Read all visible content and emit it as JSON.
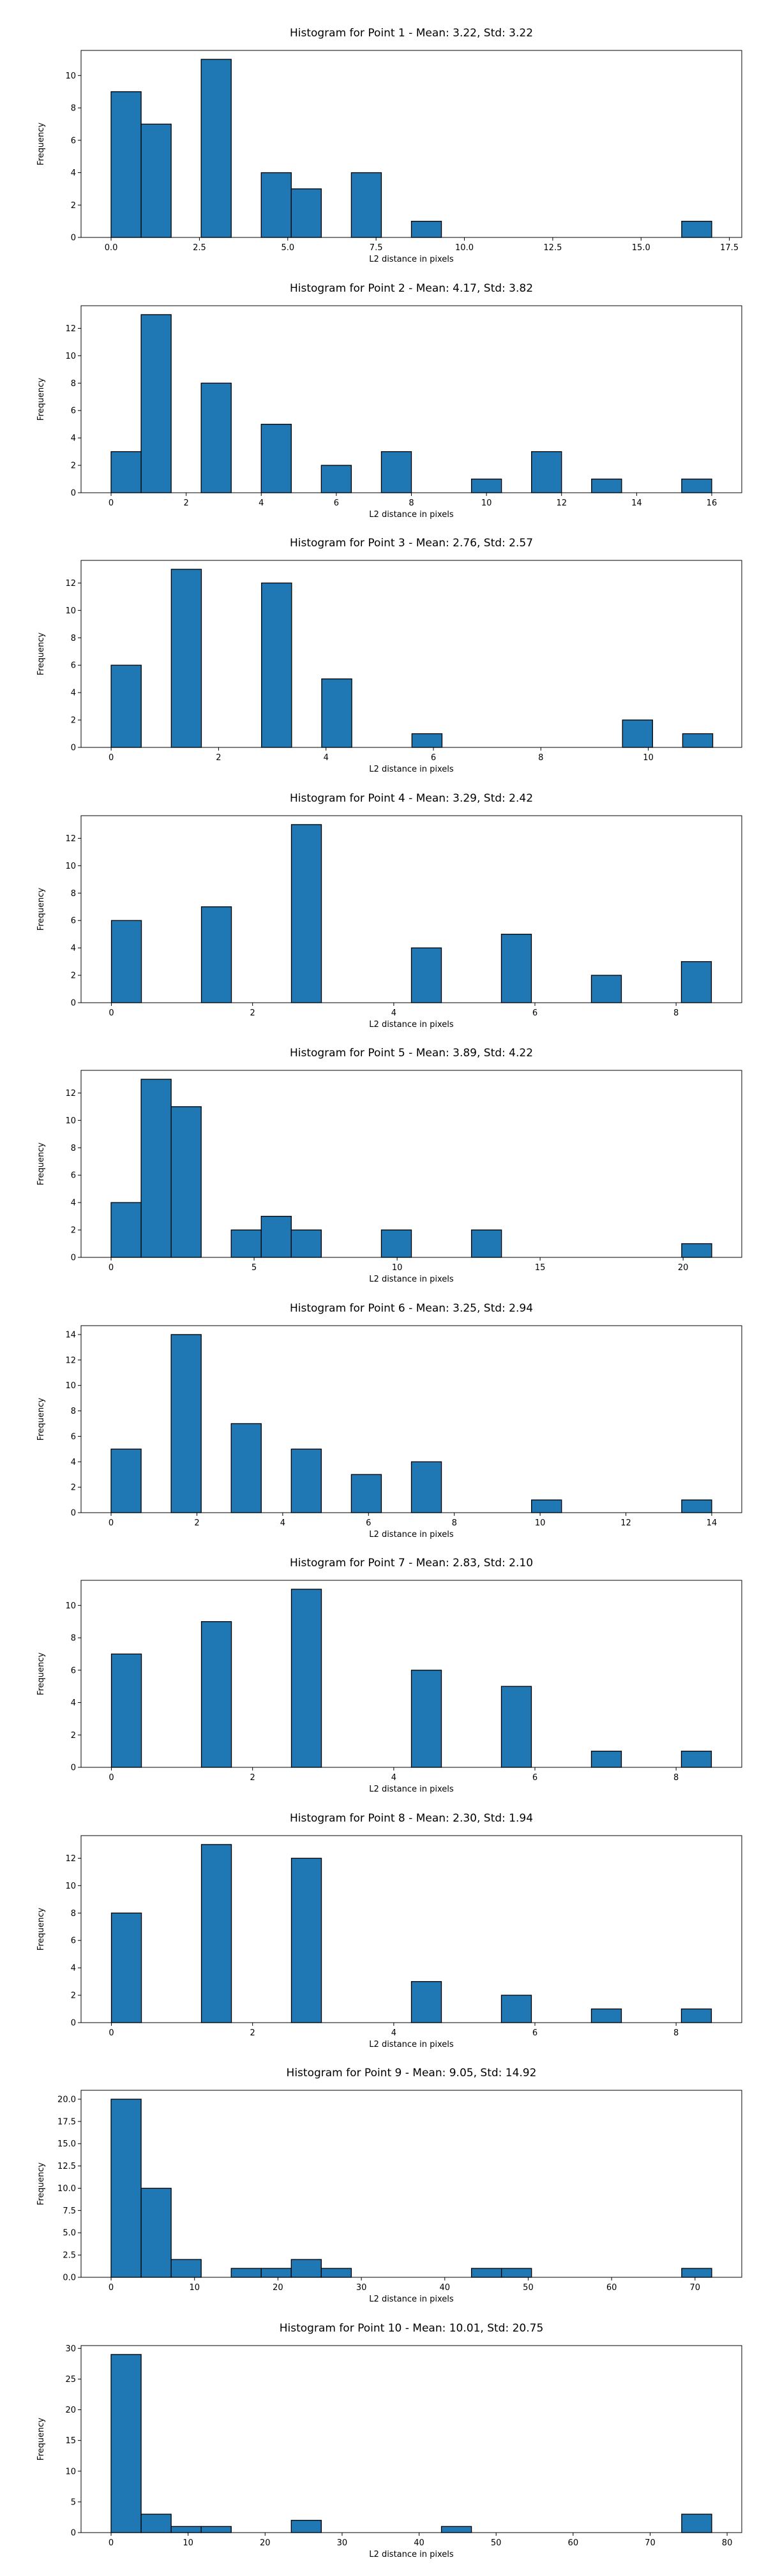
{
  "chart_data": [
    {
      "type": "bar",
      "title": "Histogram for Point 1 - Mean: 3.22, Std: 3.22",
      "xlabel": "L2 distance in pixels",
      "ylabel": "Frequency",
      "xlim": [
        -0.85,
        17.85
      ],
      "ylim": [
        0,
        11.55
      ],
      "xticks": [
        0,
        2.5,
        5,
        7.5,
        10,
        12.5,
        15,
        17.5
      ],
      "xtick_labels": [
        "0.0",
        "2.5",
        "5.0",
        "7.5",
        "10.0",
        "12.5",
        "15.0",
        "17.5"
      ],
      "yticks": [
        0,
        2,
        4,
        6,
        8,
        10
      ],
      "bins": [
        {
          "x0": 0.0,
          "x1": 0.85,
          "count": 9
        },
        {
          "x0": 0.85,
          "x1": 1.7,
          "count": 7
        },
        {
          "x0": 2.55,
          "x1": 3.4,
          "count": 11
        },
        {
          "x0": 4.25,
          "x1": 5.1,
          "count": 4
        },
        {
          "x0": 5.1,
          "x1": 5.95,
          "count": 3
        },
        {
          "x0": 6.8,
          "x1": 7.65,
          "count": 4
        },
        {
          "x0": 8.5,
          "x1": 9.35,
          "count": 1
        },
        {
          "x0": 16.15,
          "x1": 17.0,
          "count": 1
        }
      ]
    },
    {
      "type": "bar",
      "title": "Histogram for Point 2 - Mean: 4.17, Std: 3.82",
      "xlabel": "L2 distance in pixels",
      "ylabel": "Frequency",
      "xlim": [
        -0.8,
        16.8
      ],
      "ylim": [
        0,
        13.65
      ],
      "xticks": [
        0,
        2,
        4,
        6,
        8,
        10,
        12,
        14,
        16
      ],
      "xtick_labels": [
        "0",
        "2",
        "4",
        "6",
        "8",
        "10",
        "12",
        "14",
        "16"
      ],
      "yticks": [
        0,
        2,
        4,
        6,
        8,
        10,
        12
      ],
      "bins": [
        {
          "x0": 0.0,
          "x1": 0.8,
          "count": 3
        },
        {
          "x0": 0.8,
          "x1": 1.6,
          "count": 13
        },
        {
          "x0": 2.4,
          "x1": 3.2,
          "count": 8
        },
        {
          "x0": 4.0,
          "x1": 4.8,
          "count": 5
        },
        {
          "x0": 5.6,
          "x1": 6.4,
          "count": 2
        },
        {
          "x0": 7.2,
          "x1": 8.0,
          "count": 3
        },
        {
          "x0": 9.6,
          "x1": 10.4,
          "count": 1
        },
        {
          "x0": 11.2,
          "x1": 12.0,
          "count": 3
        },
        {
          "x0": 12.8,
          "x1": 13.6,
          "count": 1
        },
        {
          "x0": 15.2,
          "x1": 16.0,
          "count": 1
        }
      ]
    },
    {
      "type": "bar",
      "title": "Histogram for Point 3 - Mean: 2.76, Std: 2.57",
      "xlabel": "L2 distance in pixels",
      "ylabel": "Frequency",
      "xlim": [
        -0.56,
        11.74
      ],
      "ylim": [
        0,
        13.65
      ],
      "xticks": [
        0,
        2,
        4,
        6,
        8,
        10
      ],
      "xtick_labels": [
        "0",
        "2",
        "4",
        "6",
        "8",
        "10"
      ],
      "yticks": [
        0,
        2,
        4,
        6,
        8,
        10,
        12
      ],
      "bins": [
        {
          "x0": 0.0,
          "x1": 0.56,
          "count": 6
        },
        {
          "x0": 1.12,
          "x1": 1.68,
          "count": 13
        },
        {
          "x0": 2.8,
          "x1": 3.36,
          "count": 12
        },
        {
          "x0": 3.92,
          "x1": 4.48,
          "count": 5
        },
        {
          "x0": 5.6,
          "x1": 6.16,
          "count": 1
        },
        {
          "x0": 9.52,
          "x1": 10.08,
          "count": 2
        },
        {
          "x0": 10.64,
          "x1": 11.2,
          "count": 1
        }
      ]
    },
    {
      "type": "bar",
      "title": "Histogram for Point 4 - Mean: 3.29, Std: 2.42",
      "xlabel": "L2 distance in pixels",
      "ylabel": "Frequency",
      "xlim": [
        -0.43,
        8.93
      ],
      "ylim": [
        0,
        13.65
      ],
      "xticks": [
        0,
        2,
        4,
        6,
        8
      ],
      "xtick_labels": [
        "0",
        "2",
        "4",
        "6",
        "8"
      ],
      "yticks": [
        0,
        2,
        4,
        6,
        8,
        10,
        12
      ],
      "bins": [
        {
          "x0": 0.0,
          "x1": 0.425,
          "count": 6
        },
        {
          "x0": 1.275,
          "x1": 1.7,
          "count": 7
        },
        {
          "x0": 2.55,
          "x1": 2.975,
          "count": 13
        },
        {
          "x0": 4.25,
          "x1": 4.675,
          "count": 4
        },
        {
          "x0": 5.525,
          "x1": 5.95,
          "count": 5
        },
        {
          "x0": 6.8,
          "x1": 7.225,
          "count": 2
        },
        {
          "x0": 8.075,
          "x1": 8.5,
          "count": 3
        }
      ]
    },
    {
      "type": "bar",
      "title": "Histogram for Point 5 - Mean: 3.89, Std: 4.22",
      "xlabel": "L2 distance in pixels",
      "ylabel": "Frequency",
      "xlim": [
        -1.05,
        22.05
      ],
      "ylim": [
        0,
        13.65
      ],
      "xticks": [
        0,
        5,
        10,
        15,
        20
      ],
      "xtick_labels": [
        "0",
        "5",
        "10",
        "15",
        "20"
      ],
      "yticks": [
        0,
        2,
        4,
        6,
        8,
        10,
        12
      ],
      "bins": [
        {
          "x0": 0.0,
          "x1": 1.05,
          "count": 4
        },
        {
          "x0": 1.05,
          "x1": 2.1,
          "count": 13
        },
        {
          "x0": 2.1,
          "x1": 3.15,
          "count": 11
        },
        {
          "x0": 4.2,
          "x1": 5.25,
          "count": 2
        },
        {
          "x0": 5.25,
          "x1": 6.3,
          "count": 3
        },
        {
          "x0": 6.3,
          "x1": 7.35,
          "count": 2
        },
        {
          "x0": 9.45,
          "x1": 10.5,
          "count": 2
        },
        {
          "x0": 12.6,
          "x1": 13.65,
          "count": 2
        },
        {
          "x0": 19.95,
          "x1": 21.0,
          "count": 1
        }
      ]
    },
    {
      "type": "bar",
      "title": "Histogram for Point 6 - Mean: 3.25, Std: 2.94",
      "xlabel": "L2 distance in pixels",
      "ylabel": "Frequency",
      "xlim": [
        -0.7,
        14.7
      ],
      "ylim": [
        0,
        14.7
      ],
      "xticks": [
        0,
        2,
        4,
        6,
        8,
        10,
        12,
        14
      ],
      "xtick_labels": [
        "0",
        "2",
        "4",
        "6",
        "8",
        "10",
        "12",
        "14"
      ],
      "yticks": [
        0,
        2,
        4,
        6,
        8,
        10,
        12,
        14
      ],
      "bins": [
        {
          "x0": 0.0,
          "x1": 0.7,
          "count": 5
        },
        {
          "x0": 1.4,
          "x1": 2.1,
          "count": 14
        },
        {
          "x0": 2.8,
          "x1": 3.5,
          "count": 7
        },
        {
          "x0": 4.2,
          "x1": 4.9,
          "count": 5
        },
        {
          "x0": 5.6,
          "x1": 6.3,
          "count": 3
        },
        {
          "x0": 7.0,
          "x1": 7.7,
          "count": 4
        },
        {
          "x0": 9.8,
          "x1": 10.5,
          "count": 1
        },
        {
          "x0": 13.3,
          "x1": 14.0,
          "count": 1
        }
      ]
    },
    {
      "type": "bar",
      "title": "Histogram for Point 7 - Mean: 2.83, Std: 2.10",
      "xlabel": "L2 distance in pixels",
      "ylabel": "Frequency",
      "xlim": [
        -0.43,
        8.93
      ],
      "ylim": [
        0,
        11.55
      ],
      "xticks": [
        0,
        2,
        4,
        6,
        8
      ],
      "xtick_labels": [
        "0",
        "2",
        "4",
        "6",
        "8"
      ],
      "yticks": [
        0,
        2,
        4,
        6,
        8,
        10
      ],
      "bins": [
        {
          "x0": 0.0,
          "x1": 0.425,
          "count": 7
        },
        {
          "x0": 1.275,
          "x1": 1.7,
          "count": 9
        },
        {
          "x0": 2.55,
          "x1": 2.975,
          "count": 11
        },
        {
          "x0": 4.25,
          "x1": 4.675,
          "count": 6
        },
        {
          "x0": 5.525,
          "x1": 5.95,
          "count": 5
        },
        {
          "x0": 6.8,
          "x1": 7.225,
          "count": 1
        },
        {
          "x0": 8.075,
          "x1": 8.5,
          "count": 1
        }
      ]
    },
    {
      "type": "bar",
      "title": "Histogram for Point 8 - Mean: 2.30, Std: 1.94",
      "xlabel": "L2 distance in pixels",
      "ylabel": "Frequency",
      "xlim": [
        -0.43,
        8.93
      ],
      "ylim": [
        0,
        13.65
      ],
      "xticks": [
        0,
        2,
        4,
        6,
        8
      ],
      "xtick_labels": [
        "0",
        "2",
        "4",
        "6",
        "8"
      ],
      "yticks": [
        0,
        2,
        4,
        6,
        8,
        10,
        12
      ],
      "bins": [
        {
          "x0": 0.0,
          "x1": 0.425,
          "count": 8
        },
        {
          "x0": 1.275,
          "x1": 1.7,
          "count": 13
        },
        {
          "x0": 2.55,
          "x1": 2.975,
          "count": 12
        },
        {
          "x0": 4.25,
          "x1": 4.675,
          "count": 3
        },
        {
          "x0": 5.525,
          "x1": 5.95,
          "count": 2
        },
        {
          "x0": 6.8,
          "x1": 7.225,
          "count": 1
        },
        {
          "x0": 8.075,
          "x1": 8.5,
          "count": 1
        }
      ]
    },
    {
      "type": "bar",
      "title": "Histogram for Point 9 - Mean: 9.05, Std: 14.92",
      "xlabel": "L2 distance in pixels",
      "ylabel": "Frequency",
      "xlim": [
        -3.6,
        75.6
      ],
      "ylim": [
        0,
        21.0
      ],
      "xticks": [
        0,
        10,
        20,
        30,
        40,
        50,
        60,
        70
      ],
      "xtick_labels": [
        "0",
        "10",
        "20",
        "30",
        "40",
        "50",
        "60",
        "70"
      ],
      "yticks": [
        0,
        2.5,
        5,
        7.5,
        10,
        12.5,
        15,
        17.5,
        20
      ],
      "ytick_labels": [
        "0.0",
        "2.5",
        "5.0",
        "7.5",
        "10.0",
        "12.5",
        "15.0",
        "17.5",
        "20.0"
      ],
      "bins": [
        {
          "x0": 0.0,
          "x1": 3.6,
          "count": 20
        },
        {
          "x0": 3.6,
          "x1": 7.2,
          "count": 10
        },
        {
          "x0": 7.2,
          "x1": 10.8,
          "count": 2
        },
        {
          "x0": 14.4,
          "x1": 18.0,
          "count": 1
        },
        {
          "x0": 18.0,
          "x1": 21.6,
          "count": 1
        },
        {
          "x0": 21.6,
          "x1": 25.2,
          "count": 2
        },
        {
          "x0": 25.2,
          "x1": 28.8,
          "count": 1
        },
        {
          "x0": 43.2,
          "x1": 46.8,
          "count": 1
        },
        {
          "x0": 46.8,
          "x1": 50.4,
          "count": 1
        },
        {
          "x0": 68.4,
          "x1": 72.0,
          "count": 1
        }
      ]
    },
    {
      "type": "bar",
      "title": "Histogram for Point 10 - Mean: 10.01, Std: 20.75",
      "xlabel": "L2 distance in pixels",
      "ylabel": "Frequency",
      "xlim": [
        -3.9,
        81.9
      ],
      "ylim": [
        0,
        30.45
      ],
      "xticks": [
        0,
        10,
        20,
        30,
        40,
        50,
        60,
        70,
        80
      ],
      "xtick_labels": [
        "0",
        "10",
        "20",
        "30",
        "40",
        "50",
        "60",
        "70",
        "80"
      ],
      "yticks": [
        0,
        5,
        10,
        15,
        20,
        25,
        30
      ],
      "bins": [
        {
          "x0": 0.0,
          "x1": 3.9,
          "count": 29
        },
        {
          "x0": 3.9,
          "x1": 7.8,
          "count": 3
        },
        {
          "x0": 7.8,
          "x1": 11.7,
          "count": 1
        },
        {
          "x0": 11.7,
          "x1": 15.6,
          "count": 1
        },
        {
          "x0": 23.4,
          "x1": 27.3,
          "count": 2
        },
        {
          "x0": 42.9,
          "x1": 46.8,
          "count": 1
        },
        {
          "x0": 74.1,
          "x1": 78.0,
          "count": 3
        }
      ]
    }
  ],
  "colors": {
    "bar_fill": "#1f77b4",
    "bar_edge": "#000000"
  }
}
